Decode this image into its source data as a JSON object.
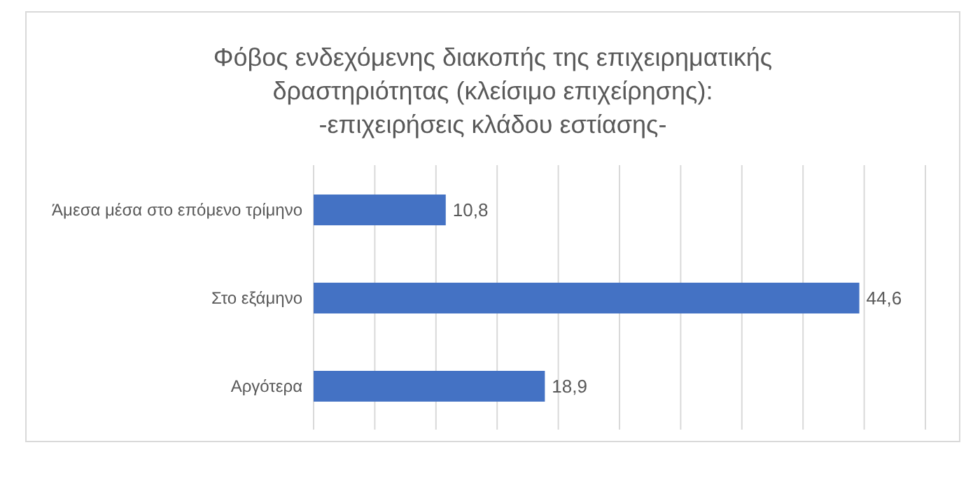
{
  "chart_data": {
    "type": "bar",
    "orientation": "horizontal",
    "title": "Φόβος ενδεχόμενης διακοπής της επιχειρηματικής δραστηριότητας (κλείσιμο επιχείρησης):",
    "subtitle": "-επιχειρήσεις κλάδου εστίασης-",
    "categories": [
      "Άμεσα μέσα στο επόμενο τρίμηνο",
      "Στο εξάμηνο",
      "Αργότερα"
    ],
    "values": [
      10.8,
      44.6,
      18.9
    ],
    "value_labels": [
      "10,8",
      "44,6",
      "18,9"
    ],
    "color": "#4472c4",
    "xlim": [
      0,
      50
    ],
    "grid": "x",
    "tick_labels": "y"
  }
}
